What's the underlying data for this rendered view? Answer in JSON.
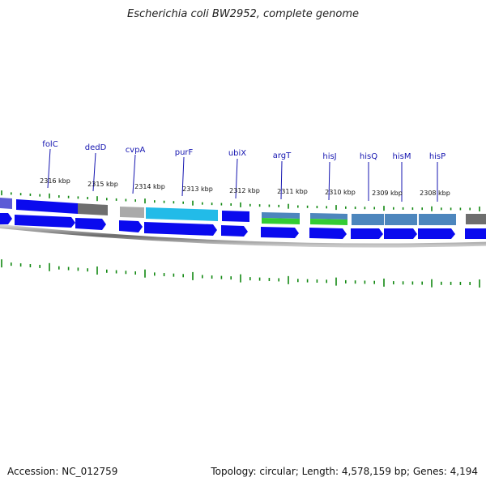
{
  "title": "Escherichia coli BW2952, complete genome",
  "footer": {
    "accession": "Accession: NC_012759",
    "summary": "Topology: circular; Length: 4,578,159 bp; Genes: 4,194"
  },
  "colors": {
    "cds_blue": "#0a0aee",
    "cds_light_blue": "#22bbe8",
    "steel_blue": "#4d86bd",
    "gray": "#6e6e6e",
    "light_gray": "#aaaaaa",
    "trna_green": "#33cc33",
    "tick_green": "#118811",
    "label_blue": "#1515b0",
    "backbone": "#7a7a7a"
  },
  "genes": [
    {
      "name": "folC"
    },
    {
      "name": "dedD"
    },
    {
      "name": "cvpA"
    },
    {
      "name": "purF"
    },
    {
      "name": "ubiX"
    },
    {
      "name": "argT"
    },
    {
      "name": "hisJ"
    },
    {
      "name": "hisQ"
    },
    {
      "name": "hisM"
    },
    {
      "name": "hisP"
    }
  ],
  "kbp_labels": [
    "2316 kbp",
    "2315 kbp",
    "2314 kbp",
    "2313 kbp",
    "2312 kbp",
    "2311 kbp",
    "2310 kbp",
    "2309 kbp",
    "2308 kbp"
  ]
}
